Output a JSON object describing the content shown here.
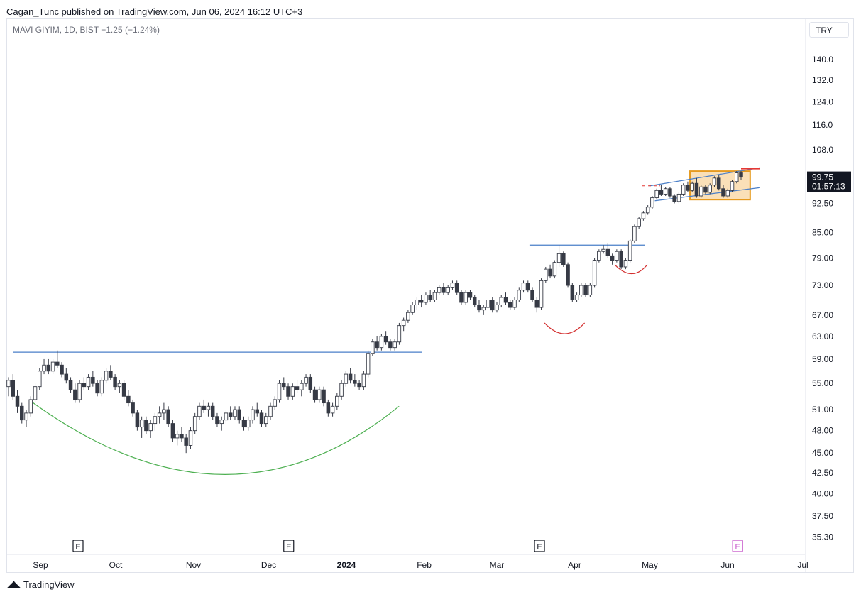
{
  "header": {
    "published": "Cagan_Tunc published on TradingView.com, Jun 06, 2024 16:12 UTC+3"
  },
  "legend": {
    "text": "MAVI GIYIM, 1D, BIST  −1.25 (−1.24%)"
  },
  "currency": "TRY",
  "footer": {
    "brand": "TradingView",
    "logo_icon": "tradingview-logo-icon"
  },
  "price_box": {
    "price": "99.75",
    "countdown": "01:57:13"
  },
  "colors": {
    "up_body": "#ffffff",
    "down_body": "#363a45",
    "wick": "#363a45",
    "trendline": "#4a7fc8",
    "cup": "#4caf50",
    "handle": "#d32f2f",
    "range_box": "#f5c77e",
    "range_border": "#e69a1e",
    "earnings": "#131722",
    "earnings_upcoming": "#c44ec8"
  },
  "chart_data": {
    "type": "candlestick",
    "symbol": "MAVI GIYIM",
    "interval": "1D",
    "exchange": "BIST",
    "change": "−1.25 (−1.24%)",
    "scale": "log",
    "ylim": [
      34.0,
      148.0
    ],
    "y_ticks": [
      "140.0",
      "132.0",
      "124.0",
      "116.0",
      "108.0",
      "92.50",
      "85.00",
      "79.00",
      "73.00",
      "67.00",
      "63.00",
      "59.00",
      "55.00",
      "51.00",
      "48.00",
      "45.00",
      "42.50",
      "40.00",
      "37.50",
      "35.30"
    ],
    "x_ticks": [
      {
        "label": "Sep",
        "date": "2023-09-01",
        "bold": false
      },
      {
        "label": "Oct",
        "date": "2023-10-01",
        "bold": false
      },
      {
        "label": "Nov",
        "date": "2023-11-01",
        "bold": false
      },
      {
        "label": "Dec",
        "date": "2023-12-01",
        "bold": false
      },
      {
        "label": "2024",
        "date": "2024-01-01",
        "bold": true
      },
      {
        "label": "Feb",
        "date": "2024-02-01",
        "bold": false
      },
      {
        "label": "Mar",
        "date": "2024-03-01",
        "bold": false
      },
      {
        "label": "Apr",
        "date": "2024-04-01",
        "bold": false
      },
      {
        "label": "May",
        "date": "2024-05-01",
        "bold": false
      },
      {
        "label": "Jun",
        "date": "2024-06-01",
        "bold": false
      },
      {
        "label": "Jul",
        "date": "2024-07-01",
        "bold": false
      }
    ],
    "last_price": 99.75,
    "candles_ohlc": [
      [
        54.5,
        56.0,
        53.0,
        55.5
      ],
      [
        55.5,
        56.5,
        52.5,
        53.0
      ],
      [
        53.0,
        54.0,
        50.5,
        51.5
      ],
      [
        51.5,
        52.0,
        49.0,
        49.5
      ],
      [
        49.5,
        51.0,
        48.5,
        50.5
      ],
      [
        50.5,
        53.0,
        50.0,
        52.5
      ],
      [
        52.5,
        55.0,
        52.0,
        54.5
      ],
      [
        54.5,
        57.5,
        54.0,
        57.0
      ],
      [
        57.0,
        59.0,
        56.5,
        58.0
      ],
      [
        58.0,
        59.0,
        56.5,
        57.0
      ],
      [
        57.0,
        59.0,
        56.5,
        58.5
      ],
      [
        58.5,
        60.5,
        57.5,
        58.0
      ],
      [
        58.0,
        58.5,
        56.0,
        56.5
      ],
      [
        56.5,
        57.5,
        55.0,
        55.5
      ],
      [
        55.5,
        56.0,
        53.5,
        54.0
      ],
      [
        54.0,
        55.0,
        52.0,
        52.5
      ],
      [
        52.5,
        55.5,
        52.0,
        55.0
      ],
      [
        55.0,
        56.0,
        54.0,
        54.5
      ],
      [
        54.5,
        56.5,
        54.0,
        56.0
      ],
      [
        56.0,
        57.0,
        54.5,
        55.0
      ],
      [
        55.0,
        55.5,
        53.0,
        53.5
      ],
      [
        53.5,
        56.0,
        53.0,
        55.5
      ],
      [
        55.5,
        57.5,
        55.0,
        57.0
      ],
      [
        57.0,
        58.0,
        55.5,
        56.0
      ],
      [
        56.0,
        56.5,
        54.0,
        54.5
      ],
      [
        54.5,
        55.5,
        53.5,
        55.0
      ],
      [
        55.0,
        55.5,
        52.5,
        53.0
      ],
      [
        53.0,
        54.0,
        51.5,
        52.0
      ],
      [
        52.0,
        52.5,
        50.0,
        50.5
      ],
      [
        50.5,
        51.0,
        48.0,
        48.5
      ],
      [
        48.5,
        50.0,
        47.0,
        49.5
      ],
      [
        49.5,
        50.0,
        47.5,
        48.0
      ],
      [
        48.0,
        49.5,
        47.0,
        49.0
      ],
      [
        49.0,
        50.5,
        48.0,
        50.0
      ],
      [
        50.0,
        51.5,
        49.0,
        50.5
      ],
      [
        50.5,
        52.0,
        49.5,
        51.0
      ],
      [
        51.0,
        51.5,
        48.5,
        49.0
      ],
      [
        49.0,
        49.5,
        46.5,
        47.0
      ],
      [
        47.0,
        48.0,
        46.0,
        47.5
      ],
      [
        47.5,
        48.5,
        46.5,
        47.0
      ],
      [
        47.0,
        47.5,
        45.0,
        46.0
      ],
      [
        46.0,
        48.5,
        45.5,
        48.0
      ],
      [
        48.0,
        50.5,
        47.5,
        50.0
      ],
      [
        50.0,
        52.0,
        49.5,
        51.5
      ],
      [
        51.5,
        52.5,
        50.5,
        51.0
      ],
      [
        51.0,
        52.0,
        50.0,
        51.5
      ],
      [
        51.5,
        52.0,
        49.5,
        50.0
      ],
      [
        50.0,
        50.5,
        48.5,
        49.0
      ],
      [
        49.0,
        50.0,
        48.0,
        49.5
      ],
      [
        49.5,
        51.0,
        49.0,
        50.5
      ],
      [
        50.5,
        51.5,
        49.5,
        50.0
      ],
      [
        50.0,
        51.5,
        49.5,
        51.0
      ],
      [
        51.0,
        51.5,
        49.0,
        49.5
      ],
      [
        49.5,
        50.0,
        48.0,
        48.5
      ],
      [
        48.5,
        50.0,
        48.0,
        49.5
      ],
      [
        49.5,
        51.5,
        49.0,
        51.0
      ],
      [
        51.0,
        52.0,
        50.0,
        50.5
      ],
      [
        50.5,
        51.0,
        48.5,
        49.0
      ],
      [
        49.0,
        50.5,
        48.5,
        50.0
      ],
      [
        50.0,
        52.0,
        49.5,
        51.5
      ],
      [
        51.5,
        53.0,
        51.0,
        52.5
      ],
      [
        52.5,
        55.5,
        52.0,
        55.0
      ],
      [
        55.0,
        56.0,
        54.0,
        54.5
      ],
      [
        54.5,
        55.0,
        52.5,
        53.0
      ],
      [
        53.0,
        55.0,
        52.5,
        54.5
      ],
      [
        54.5,
        55.5,
        53.5,
        54.0
      ],
      [
        54.0,
        55.5,
        53.0,
        55.0
      ],
      [
        55.0,
        56.5,
        54.5,
        56.0
      ],
      [
        56.0,
        56.5,
        53.5,
        54.0
      ],
      [
        54.0,
        54.5,
        52.0,
        52.5
      ],
      [
        52.5,
        54.5,
        52.0,
        54.0
      ],
      [
        54.0,
        54.5,
        51.5,
        52.0
      ],
      [
        52.0,
        52.5,
        50.0,
        50.5
      ],
      [
        50.5,
        52.0,
        50.0,
        51.5
      ],
      [
        51.5,
        53.5,
        51.0,
        53.0
      ],
      [
        53.0,
        55.5,
        52.5,
        55.0
      ],
      [
        55.0,
        57.0,
        54.5,
        56.5
      ],
      [
        56.5,
        57.5,
        55.0,
        55.5
      ],
      [
        55.5,
        56.5,
        54.5,
        55.0
      ],
      [
        55.0,
        55.5,
        54.0,
        54.5
      ],
      [
        54.5,
        57.0,
        54.0,
        56.5
      ],
      [
        56.5,
        60.5,
        56.0,
        60.0
      ],
      [
        60.0,
        62.5,
        59.5,
        62.0
      ],
      [
        62.0,
        63.0,
        60.5,
        61.0
      ],
      [
        61.0,
        63.5,
        60.5,
        63.0
      ],
      [
        63.0,
        64.0,
        61.5,
        62.0
      ],
      [
        62.0,
        62.5,
        60.5,
        61.0
      ],
      [
        61.0,
        62.5,
        60.5,
        62.0
      ],
      [
        62.0,
        65.5,
        61.5,
        65.0
      ],
      [
        65.0,
        66.5,
        64.0,
        66.0
      ],
      [
        66.0,
        68.0,
        65.5,
        67.5
      ],
      [
        67.5,
        69.5,
        67.0,
        69.0
      ],
      [
        69.0,
        70.5,
        68.0,
        70.0
      ],
      [
        70.0,
        71.0,
        68.5,
        69.5
      ],
      [
        69.5,
        71.5,
        69.0,
        71.0
      ],
      [
        71.0,
        72.0,
        69.5,
        70.0
      ],
      [
        70.0,
        72.0,
        69.5,
        71.5
      ],
      [
        71.5,
        73.0,
        71.0,
        72.5
      ],
      [
        72.5,
        73.5,
        71.0,
        71.5
      ],
      [
        71.5,
        73.0,
        71.0,
        72.5
      ],
      [
        72.5,
        74.0,
        72.0,
        73.5
      ],
      [
        73.5,
        74.0,
        71.0,
        71.5
      ],
      [
        71.5,
        72.0,
        69.0,
        69.5
      ],
      [
        69.5,
        72.0,
        69.0,
        71.5
      ],
      [
        71.5,
        72.0,
        70.0,
        70.5
      ],
      [
        70.5,
        71.0,
        68.5,
        69.0
      ],
      [
        69.0,
        70.0,
        67.5,
        68.0
      ],
      [
        68.0,
        69.0,
        67.0,
        68.5
      ],
      [
        68.5,
        70.5,
        68.0,
        70.0
      ],
      [
        70.0,
        70.5,
        67.5,
        68.0
      ],
      [
        68.0,
        69.5,
        67.5,
        69.0
      ],
      [
        69.0,
        71.0,
        68.5,
        70.5
      ],
      [
        70.5,
        71.5,
        69.0,
        69.5
      ],
      [
        69.5,
        70.0,
        68.0,
        68.5
      ],
      [
        68.5,
        70.5,
        68.0,
        70.0
      ],
      [
        70.0,
        72.5,
        69.5,
        72.0
      ],
      [
        72.0,
        74.0,
        71.5,
        73.5
      ],
      [
        73.5,
        74.0,
        71.5,
        72.0
      ],
      [
        72.0,
        72.5,
        69.5,
        70.0
      ],
      [
        70.0,
        70.5,
        67.5,
        68.5
      ],
      [
        68.5,
        74.5,
        68.0,
        74.0
      ],
      [
        74.0,
        77.0,
        73.5,
        76.5
      ],
      [
        76.5,
        77.5,
        74.5,
        75.0
      ],
      [
        75.0,
        78.5,
        74.5,
        78.0
      ],
      [
        78.0,
        82.0,
        77.0,
        80.0
      ],
      [
        80.0,
        80.5,
        77.0,
        77.5
      ],
      [
        77.5,
        78.0,
        72.5,
        73.0
      ],
      [
        73.0,
        73.5,
        69.5,
        70.0
      ],
      [
        70.0,
        71.5,
        69.5,
        71.0
      ],
      [
        71.0,
        73.5,
        70.5,
        73.0
      ],
      [
        73.0,
        73.5,
        70.5,
        71.0
      ],
      [
        71.0,
        73.5,
        70.5,
        73.0
      ],
      [
        73.0,
        79.0,
        72.5,
        78.5
      ],
      [
        78.5,
        81.0,
        78.0,
        80.5
      ],
      [
        80.5,
        82.0,
        80.0,
        81.0
      ],
      [
        81.0,
        82.5,
        79.0,
        79.5
      ],
      [
        79.5,
        80.0,
        77.5,
        78.5
      ],
      [
        78.5,
        81.0,
        78.0,
        80.5
      ],
      [
        80.5,
        81.0,
        76.5,
        77.0
      ],
      [
        77.0,
        79.0,
        76.5,
        78.5
      ],
      [
        78.5,
        83.5,
        78.0,
        83.0
      ],
      [
        83.0,
        87.0,
        82.5,
        86.5
      ],
      [
        86.5,
        89.0,
        86.0,
        88.5
      ],
      [
        88.5,
        90.5,
        88.0,
        90.0
      ],
      [
        90.0,
        92.0,
        89.5,
        91.5
      ],
      [
        91.5,
        94.5,
        91.0,
        94.0
      ],
      [
        94.0,
        96.5,
        93.5,
        96.0
      ],
      [
        96.0,
        97.5,
        94.5,
        95.0
      ],
      [
        95.0,
        97.0,
        94.5,
        96.5
      ],
      [
        96.5,
        97.0,
        94.0,
        94.5
      ],
      [
        94.5,
        95.0,
        92.5,
        93.0
      ],
      [
        93.0,
        95.5,
        92.5,
        95.0
      ],
      [
        95.0,
        98.0,
        94.5,
        97.5
      ],
      [
        97.5,
        98.5,
        95.5,
        96.0
      ],
      [
        96.0,
        98.5,
        95.5,
        98.0
      ],
      [
        98.0,
        99.5,
        94.0,
        94.5
      ],
      [
        94.5,
        97.5,
        94.0,
        97.0
      ],
      [
        97.0,
        97.5,
        95.0,
        95.5
      ],
      [
        95.5,
        98.0,
        95.0,
        97.5
      ],
      [
        97.5,
        100.0,
        97.0,
        99.5
      ],
      [
        99.5,
        100.5,
        96.0,
        96.5
      ],
      [
        96.5,
        97.5,
        94.0,
        94.5
      ],
      [
        94.5,
        96.5,
        94.0,
        96.0
      ],
      [
        96.0,
        99.0,
        95.5,
        98.5
      ],
      [
        98.5,
        101.5,
        98.0,
        101.0
      ],
      [
        101.0,
        101.5,
        99.0,
        99.75
      ]
    ],
    "channel_lines": [
      {
        "from": [
          "2023-08-21",
          60.2
        ],
        "to": [
          "2024-01-31",
          60.2
        ]
      },
      {
        "from": [
          "2024-03-14",
          82.0
        ],
        "to": [
          "2024-04-29",
          82.0
        ]
      },
      {
        "from": [
          "2024-05-01",
          97.3
        ],
        "to": [
          "2024-06-14",
          102.5
        ]
      },
      {
        "from": [
          "2024-05-03",
          93.2
        ],
        "to": [
          "2024-06-14",
          96.8
        ]
      }
    ],
    "cup_curve": {
      "from": [
        "2023-08-28",
        52.3
      ],
      "bottom": [
        "2023-11-15",
        42.3
      ],
      "to": [
        "2024-01-22",
        51.5
      ]
    },
    "handle_curves": [
      {
        "from": [
          "2024-03-20",
          65.5
        ],
        "bottom": [
          "2024-03-28",
          63.5
        ],
        "to": [
          "2024-04-05",
          65.5
        ]
      },
      {
        "from": [
          "2024-04-17",
          77.5
        ],
        "bottom": [
          "2024-04-24",
          75.5
        ],
        "to": [
          "2024-04-30",
          77.5
        ]
      }
    ],
    "range_box": {
      "from": "2024-05-17",
      "to": "2024-06-10",
      "low": 93.5,
      "high": 101.5
    },
    "earnings_markers": [
      {
        "label": "E",
        "date": "2023-09-16",
        "upcoming": false
      },
      {
        "label": "E",
        "date": "2023-12-09",
        "upcoming": false
      },
      {
        "label": "E",
        "date": "2024-03-18",
        "upcoming": false
      },
      {
        "label": "E",
        "date": "2024-06-05",
        "upcoming": true
      }
    ]
  }
}
